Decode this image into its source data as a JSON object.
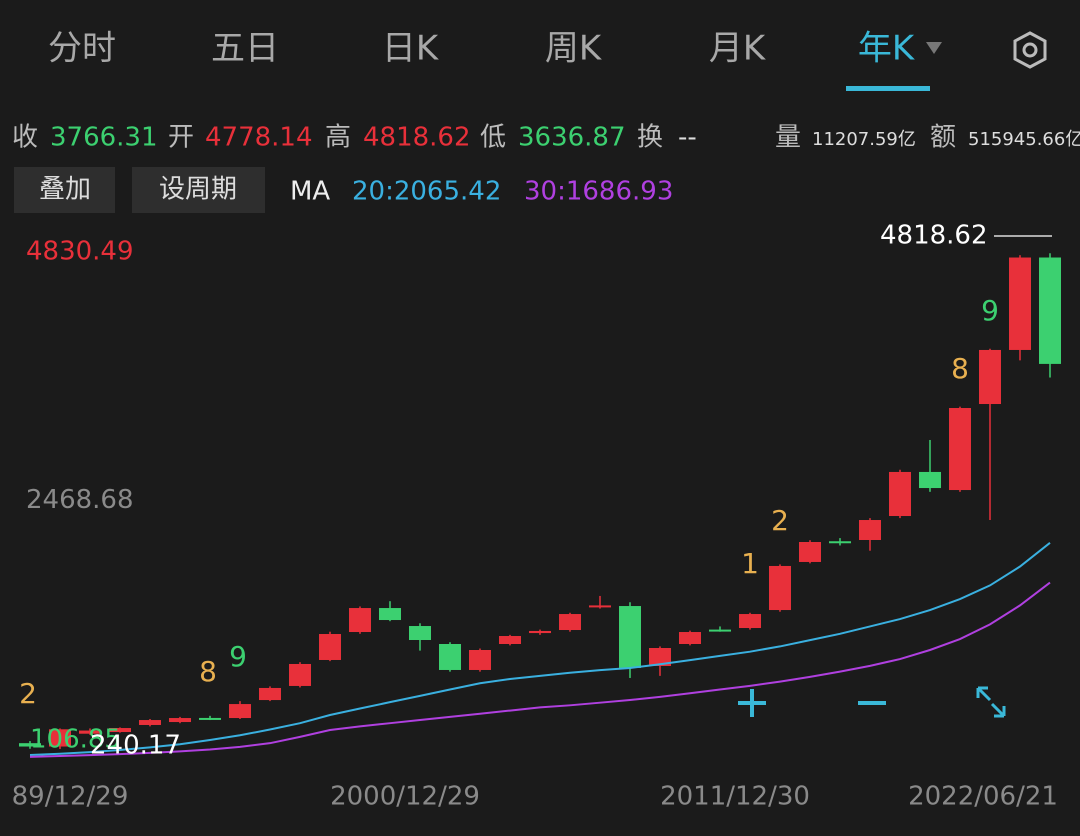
{
  "tabs": [
    "分时",
    "五日",
    "日K",
    "周K",
    "月K",
    "年K"
  ],
  "quote": {
    "close_label": "收",
    "close": "3766.31",
    "open_label": "开",
    "open": "4778.14",
    "high_label": "高",
    "high": "4818.62",
    "low_label": "低",
    "low": "3636.87",
    "turnover_label": "换",
    "turnover": "--",
    "volume_label": "量",
    "volume": "11207.59亿",
    "amount_label": "额",
    "amount": "515945.66亿"
  },
  "buttons": [
    "叠加",
    "设周期"
  ],
  "ma": {
    "label": "MA",
    "items": [
      "20:2065.42",
      "30:1686.93"
    ]
  },
  "chart": {
    "type": "candlestick",
    "ylim": [
      0,
      4830.49
    ],
    "yticks": [
      4830.49,
      2468.68
    ],
    "candles": [
      {
        "open": 160,
        "high": 180,
        "low": 107,
        "close": 128
      },
      {
        "open": 128,
        "high": 300,
        "low": 105,
        "close": 292
      },
      {
        "open": 250,
        "high": 300,
        "low": 240,
        "close": 280
      },
      {
        "open": 266,
        "high": 310,
        "low": 260,
        "close": 304
      },
      {
        "open": 333,
        "high": 390,
        "low": 320,
        "close": 380
      },
      {
        "open": 361,
        "high": 410,
        "low": 350,
        "close": 399
      },
      {
        "open": 400,
        "high": 420,
        "low": 380,
        "close": 395
      },
      {
        "open": 399,
        "high": 560,
        "low": 390,
        "close": 532
      },
      {
        "open": 570,
        "high": 700,
        "low": 560,
        "close": 685
      },
      {
        "open": 704,
        "high": 930,
        "low": 690,
        "close": 913
      },
      {
        "open": 951,
        "high": 1220,
        "low": 940,
        "close": 1198
      },
      {
        "open": 1217,
        "high": 1460,
        "low": 1200,
        "close": 1445
      },
      {
        "open": 1445,
        "high": 1510,
        "low": 1320,
        "close": 1331
      },
      {
        "open": 1274,
        "high": 1300,
        "low": 1040,
        "close": 1141
      },
      {
        "open": 1103,
        "high": 1120,
        "low": 840,
        "close": 856
      },
      {
        "open": 856,
        "high": 1060,
        "low": 840,
        "close": 1046
      },
      {
        "open": 1103,
        "high": 1190,
        "low": 1090,
        "close": 1179
      },
      {
        "open": 1207,
        "high": 1240,
        "low": 1190,
        "close": 1227
      },
      {
        "open": 1236,
        "high": 1400,
        "low": 1220,
        "close": 1388
      },
      {
        "open": 1455,
        "high": 1560,
        "low": 1440,
        "close": 1470
      },
      {
        "open": 1464,
        "high": 1500,
        "low": 780,
        "close": 875
      },
      {
        "open": 894,
        "high": 1080,
        "low": 800,
        "close": 1065
      },
      {
        "open": 1103,
        "high": 1230,
        "low": 1090,
        "close": 1217
      },
      {
        "open": 1240,
        "high": 1270,
        "low": 1220,
        "close": 1230
      },
      {
        "open": 1255,
        "high": 1400,
        "low": 1240,
        "close": 1388
      },
      {
        "open": 1426,
        "high": 1860,
        "low": 1410,
        "close": 1845
      },
      {
        "open": 1883,
        "high": 2090,
        "low": 1870,
        "close": 2073
      },
      {
        "open": 2080,
        "high": 2110,
        "low": 2040,
        "close": 2070
      },
      {
        "open": 2092,
        "high": 2300,
        "low": 1990,
        "close": 2282
      },
      {
        "open": 2320,
        "high": 2760,
        "low": 2300,
        "close": 2739
      },
      {
        "open": 2739,
        "high": 3043,
        "low": 2550,
        "close": 2586
      },
      {
        "open": 2567,
        "high": 3360,
        "low": 2550,
        "close": 3347
      },
      {
        "open": 3385,
        "high": 3910,
        "low": 2282,
        "close": 3899
      },
      {
        "open": 3899,
        "high": 4800,
        "low": 3800,
        "close": 4778
      },
      {
        "open": 4778.14,
        "high": 4818.62,
        "low": 3636.87,
        "close": 3766.31
      }
    ],
    "ma20": [
      48,
      60,
      75,
      95,
      120,
      150,
      190,
      235,
      290,
      350,
      428,
      490,
      550,
      610,
      670,
      730,
      770,
      800,
      830,
      855,
      875,
      910,
      950,
      990,
      1030,
      1080,
      1140,
      1200,
      1270,
      1340,
      1426,
      1530,
      1660,
      1840,
      2065.42
    ],
    "ma30": [
      30,
      38,
      46,
      56,
      68,
      82,
      100,
      125,
      160,
      220,
      285,
      320,
      350,
      380,
      410,
      440,
      470,
      500,
      520,
      545,
      570,
      600,
      635,
      670,
      705,
      745,
      790,
      840,
      895,
      960,
      1046,
      1150,
      1290,
      1470,
      1686.93
    ],
    "markers": {
      "high": "4818.62",
      "low": "106.85",
      "low2": "240.17"
    },
    "annotations": [
      "2",
      "8",
      "9",
      "1",
      "2",
      "8",
      "9"
    ],
    "x_labels": [
      "89/12/29",
      "2000/12/29",
      "2011/12/30",
      "2022/06/21"
    ]
  }
}
